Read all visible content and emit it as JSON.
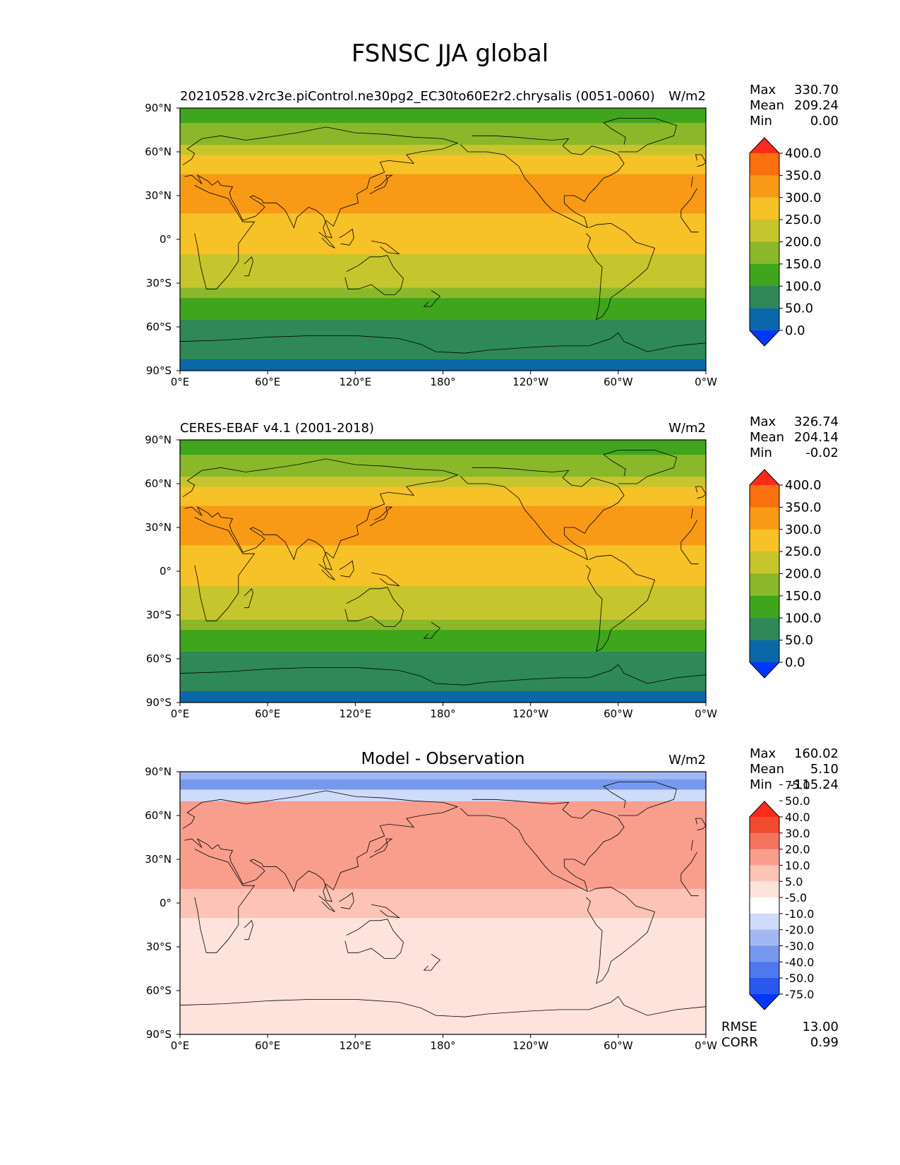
{
  "title": "FSNSC JJA global",
  "colors": {
    "fill_main": [
      "#0037ff",
      "#0a68a8",
      "#2e8858",
      "#3fa51d",
      "#8ab82a",
      "#c7c52d",
      "#f7c128",
      "#f99a17",
      "#f9700e",
      "#ff2b1a"
    ],
    "fill_diff": [
      "#0037ff",
      "#2a58ee",
      "#4d78ee",
      "#7698ee",
      "#a2b8f2",
      "#cfdbfa",
      "#ffffff",
      "#fde3dc",
      "#fcc3b6",
      "#f99e8d",
      "#f5735f",
      "#f04a2f",
      "#ff2b1a"
    ]
  },
  "chart_data": [
    {
      "type": "heatmap",
      "name": "model",
      "title": "",
      "left_label": "20210528.v2rc3e.piControl.ne30pg2_EC30to60E2r2.chrysalis (0051-0060)",
      "right_label": "W/m2",
      "stats": {
        "max_label": "Max",
        "max": "330.70",
        "mean_label": "Mean",
        "mean": "209.24",
        "min_label": "Min",
        "min": "0.00"
      },
      "xticks": [
        "0°E",
        "60°E",
        "120°E",
        "180°",
        "120°W",
        "60°W",
        "0°W"
      ],
      "yticks": [
        "90°N",
        "60°N",
        "30°N",
        "0°",
        "30°S",
        "60°S",
        "90°S"
      ],
      "xlim": [
        0,
        360
      ],
      "ylim": [
        -90,
        90
      ],
      "colorbar": {
        "levels": [
          0,
          50,
          100,
          150,
          200,
          250,
          300,
          350,
          400
        ],
        "labels": [
          "0.0",
          "50.0",
          "100.0",
          "150.0",
          "200.0",
          "250.0",
          "300.0",
          "350.0",
          "400.0"
        ],
        "extend": "both"
      },
      "zonal_values": {
        "lat_bands": [
          [
            -90,
            -82
          ],
          [
            -82,
            -55
          ],
          [
            -55,
            -40
          ],
          [
            -40,
            -33
          ],
          [
            -33,
            -22
          ],
          [
            -22,
            -10
          ],
          [
            -10,
            18
          ],
          [
            18,
            45
          ],
          [
            45,
            58
          ],
          [
            58,
            65
          ],
          [
            65,
            80
          ],
          [
            80,
            90
          ]
        ],
        "values": [
          25,
          75,
          125,
          175,
          225,
          225,
          275,
          325,
          275,
          225,
          175,
          125
        ]
      }
    },
    {
      "type": "heatmap",
      "name": "observation",
      "title": "",
      "left_label": "CERES-EBAF v4.1 (2001-2018)",
      "right_label": "W/m2",
      "stats": {
        "max_label": "Max",
        "max": "326.74",
        "mean_label": "Mean",
        "mean": "204.14",
        "min_label": "Min",
        "min": "-0.02"
      },
      "xticks": [
        "0°E",
        "60°E",
        "120°E",
        "180°",
        "120°W",
        "60°W",
        "0°W"
      ],
      "yticks": [
        "90°N",
        "60°N",
        "30°N",
        "0°",
        "30°S",
        "60°S",
        "90°S"
      ],
      "xlim": [
        0,
        360
      ],
      "ylim": [
        -90,
        90
      ],
      "colorbar": {
        "levels": [
          0,
          50,
          100,
          150,
          200,
          250,
          300,
          350,
          400
        ],
        "labels": [
          "0.0",
          "50.0",
          "100.0",
          "150.0",
          "200.0",
          "250.0",
          "300.0",
          "350.0",
          "400.0"
        ],
        "extend": "both"
      },
      "zonal_values": {
        "lat_bands": [
          [
            -90,
            -82
          ],
          [
            -82,
            -55
          ],
          [
            -55,
            -40
          ],
          [
            -40,
            -33
          ],
          [
            -33,
            -22
          ],
          [
            -22,
            -10
          ],
          [
            -10,
            18
          ],
          [
            18,
            45
          ],
          [
            45,
            58
          ],
          [
            58,
            65
          ],
          [
            65,
            80
          ],
          [
            80,
            90
          ]
        ],
        "values": [
          25,
          75,
          125,
          175,
          225,
          225,
          275,
          325,
          275,
          225,
          175,
          125
        ]
      }
    },
    {
      "type": "heatmap",
      "name": "difference",
      "title": "Model - Observation",
      "left_label": "",
      "right_label": "W/m2",
      "stats": {
        "max_label": "Max",
        "max": "160.02",
        "mean_label": "Mean",
        "mean": "5.10",
        "min_label": "Min",
        "min": "-115.24"
      },
      "extra_stats": {
        "rmse_label": "RMSE",
        "rmse": "13.00",
        "corr_label": "CORR",
        "corr": "0.99"
      },
      "xticks": [
        "0°E",
        "60°E",
        "120°E",
        "180°",
        "120°W",
        "60°W",
        "0°W"
      ],
      "yticks": [
        "90°N",
        "60°N",
        "30°N",
        "0°",
        "30°S",
        "60°S",
        "90°S"
      ],
      "xlim": [
        0,
        360
      ],
      "ylim": [
        -90,
        90
      ],
      "colorbar": {
        "levels": [
          -75,
          -50,
          -40,
          -30,
          -20,
          -10,
          -5,
          5,
          10,
          20,
          30,
          40,
          50,
          75
        ],
        "labels": [
          "-75.0",
          "-50.0",
          "-40.0",
          "-30.0",
          "-20.0",
          "-10.0",
          "-5.0",
          "5.0",
          "10.0",
          "20.0",
          "30.0",
          "40.0",
          "50.0",
          "75.0"
        ],
        "extend": "both"
      },
      "zonal_values": {
        "lat_bands": [
          [
            -90,
            -60
          ],
          [
            -60,
            -10
          ],
          [
            -10,
            10
          ],
          [
            10,
            45
          ],
          [
            45,
            70
          ],
          [
            70,
            78
          ],
          [
            78,
            85
          ],
          [
            85,
            90
          ]
        ],
        "values": [
          0,
          0,
          7,
          15,
          15,
          -15,
          -35,
          -25
        ]
      }
    }
  ]
}
